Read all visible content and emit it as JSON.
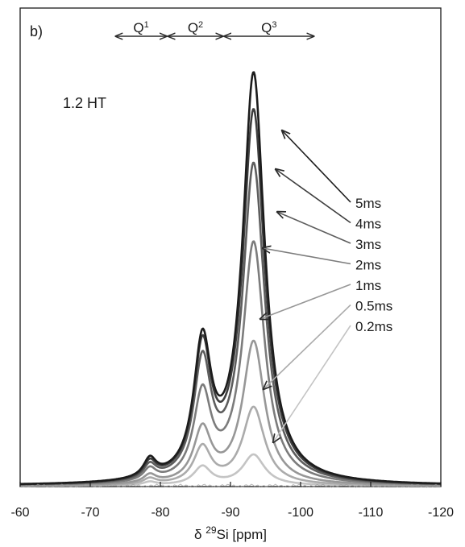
{
  "chart_data": {
    "type": "line",
    "panel_label": "b)",
    "sample_label": "1.2 HT",
    "xlabel": {
      "prefix": "δ ",
      "sup": "29",
      "suffix": "Si [ppm]"
    },
    "xlim": [
      -60,
      -120
    ],
    "x_reversed": true,
    "ylim": [
      0,
      1.0
    ],
    "y_ticks_shown": false,
    "x_ticks": [
      -60,
      -70,
      -80,
      -90,
      -100,
      -110,
      -120
    ],
    "x_tick_labels": [
      "-60",
      "-70",
      "-80",
      "-90",
      "-100",
      "-110",
      "-120"
    ],
    "regions": [
      {
        "base": "Q",
        "sup": "1",
        "from": -73.5,
        "to": -81.0
      },
      {
        "base": "Q",
        "sup": "2",
        "from": -81.0,
        "to": -89.0
      },
      {
        "base": "Q",
        "sup": "3",
        "from": -89.0,
        "to": -102.0
      }
    ],
    "peaks_ppm": [
      -78.5,
      -86.0,
      -93.3
    ],
    "series": [
      {
        "name": "5ms",
        "color": "#1c1c1c",
        "amplitudes": [
          0.045,
          0.32,
          1.0
        ]
      },
      {
        "name": "4ms",
        "color": "#3e3e3e",
        "amplitudes": [
          0.04,
          0.31,
          0.91
        ]
      },
      {
        "name": "3ms",
        "color": "#5e5e5e",
        "amplitudes": [
          0.035,
          0.28,
          0.78
        ]
      },
      {
        "name": "2ms",
        "color": "#7c7c7c",
        "amplitudes": [
          0.03,
          0.21,
          0.59
        ]
      },
      {
        "name": "1ms",
        "color": "#979797",
        "amplitudes": [
          0.02,
          0.13,
          0.35
        ]
      },
      {
        "name": "0.5ms",
        "color": "#ababab",
        "amplitudes": [
          0.014,
          0.09,
          0.19
        ]
      },
      {
        "name": "0.2ms",
        "color": "#c4c4c4",
        "amplitudes": [
          0.008,
          0.045,
          0.075
        ]
      }
    ]
  }
}
